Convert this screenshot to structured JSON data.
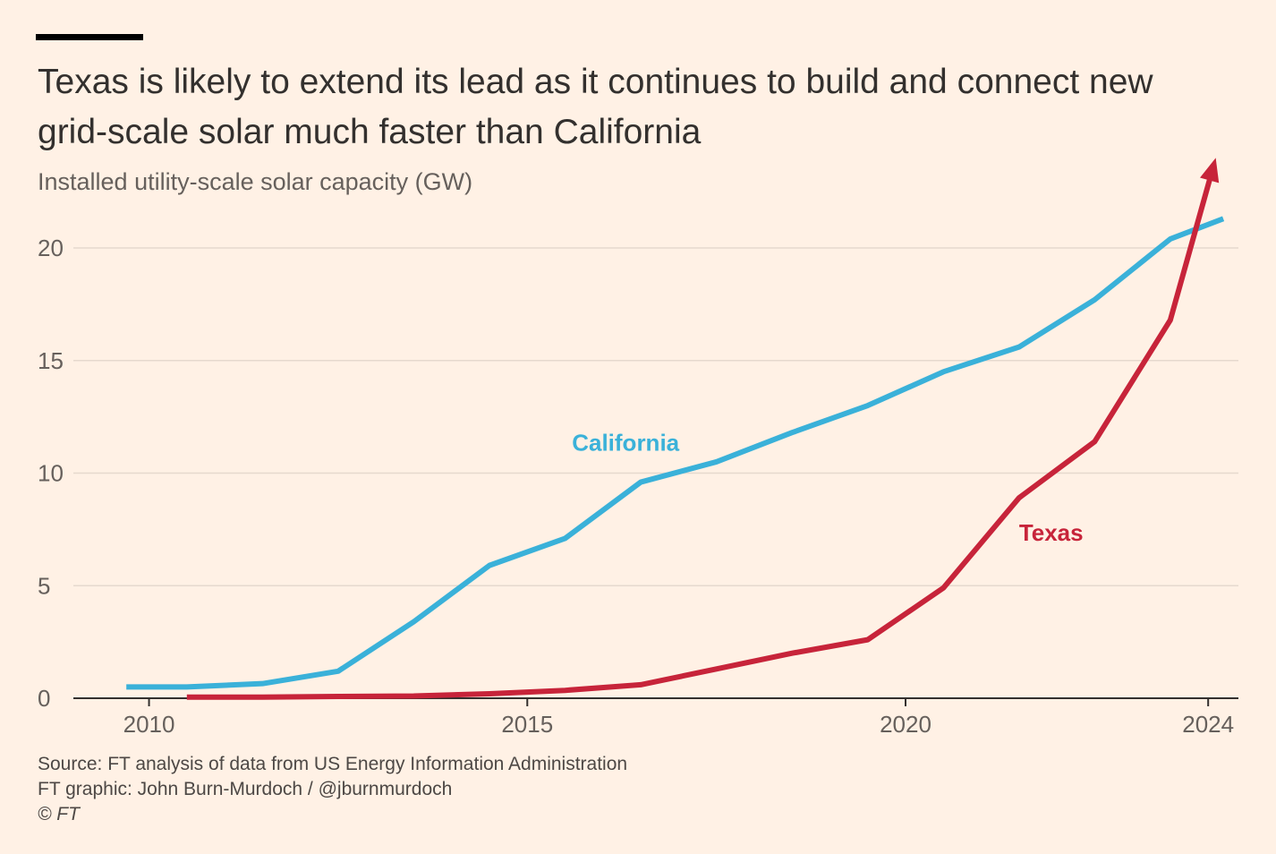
{
  "header": {
    "title": "Texas is likely to extend its lead as it continues to build and connect new grid-scale solar much faster than California",
    "subtitle": "Installed utility-scale solar capacity (GW)"
  },
  "colors": {
    "background": "#fff1e5",
    "california": "#3ab1d9",
    "texas": "#c7243a",
    "grid": "#e6d9ce",
    "axis": "#33302e",
    "text": "#66605c"
  },
  "chart_data": {
    "type": "line",
    "title": "Texas is likely to extend its lead as it continues to build and connect new grid-scale solar much faster than California",
    "ylabel": "Installed utility-scale solar capacity (GW)",
    "xlabel": "",
    "xlim": [
      2009,
      2024.4
    ],
    "ylim": [
      0,
      20
    ],
    "y_ticks": [
      0,
      5,
      10,
      15,
      20
    ],
    "y_tick_labels": [
      "0",
      "5",
      "10",
      "15",
      "20"
    ],
    "x_ticks": [
      2010,
      2015,
      2020,
      2024
    ],
    "x_tick_labels": [
      "2010",
      "2015",
      "2020",
      "2024"
    ],
    "grid": true,
    "series": [
      {
        "name": "California",
        "label": "California",
        "color": "#3ab1d9",
        "x": [
          2009.7,
          2010.5,
          2011.5,
          2012.5,
          2013.5,
          2014.5,
          2015.5,
          2016.5,
          2017.5,
          2018.5,
          2019.5,
          2020.5,
          2021.5,
          2022.5,
          2023.5,
          2024.2
        ],
        "y": [
          0.5,
          0.5,
          0.65,
          1.2,
          3.4,
          5.9,
          7.1,
          9.6,
          10.5,
          11.8,
          13.0,
          14.5,
          15.6,
          17.7,
          20.4,
          21.3
        ],
        "arrow": false
      },
      {
        "name": "Texas",
        "label": "Texas",
        "color": "#c7243a",
        "x": [
          2010.5,
          2011.5,
          2012.5,
          2013.5,
          2014.5,
          2015.5,
          2016.5,
          2017.5,
          2018.5,
          2019.5,
          2020.5,
          2021.5,
          2022.5,
          2023.5,
          2024.1
        ],
        "y": [
          0.05,
          0.05,
          0.08,
          0.1,
          0.2,
          0.35,
          0.6,
          1.3,
          2.0,
          2.6,
          4.9,
          8.9,
          11.4,
          16.8,
          24.0
        ],
        "arrow": true
      }
    ]
  },
  "footer": {
    "source": "Source: FT analysis of data from US Energy Information Administration",
    "graphic": "FT graphic: John Burn-Murdoch / @jburnmurdoch",
    "copyright": "© FT"
  }
}
